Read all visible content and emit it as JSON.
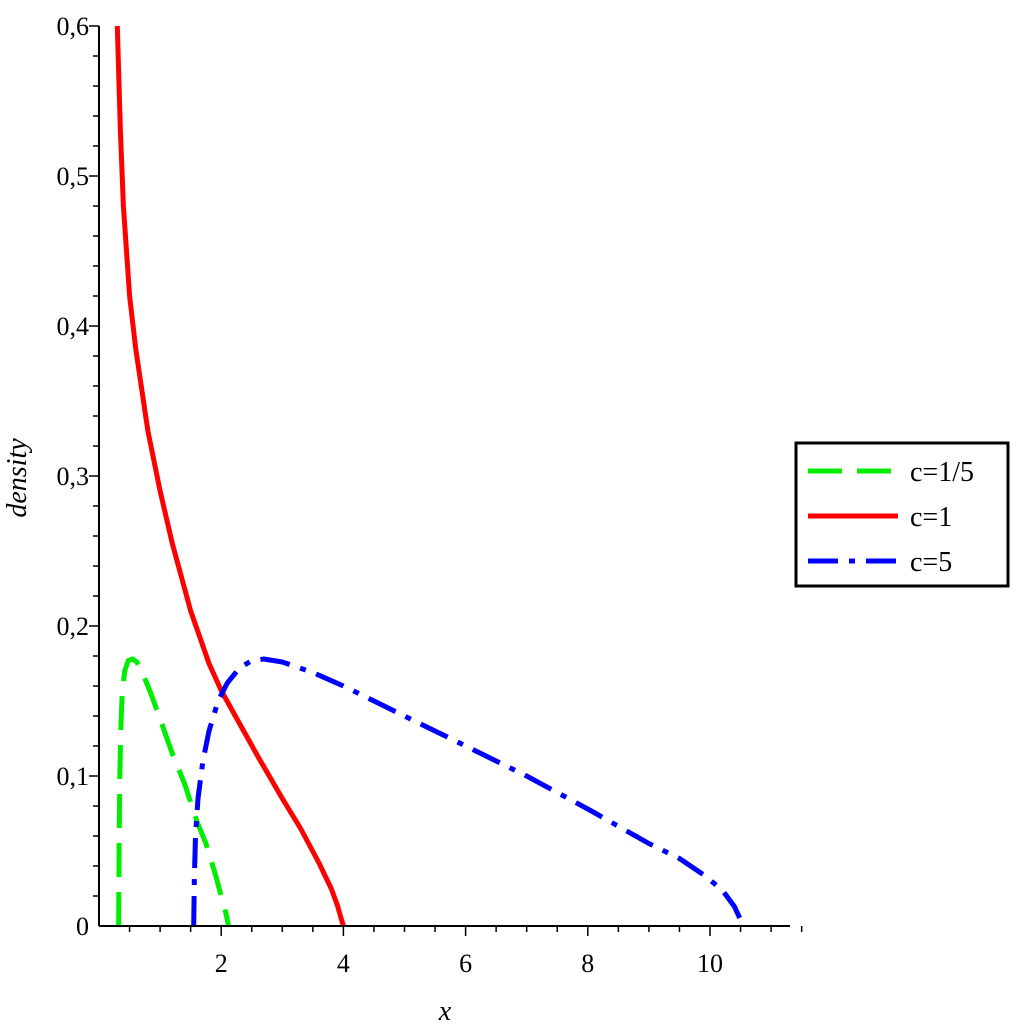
{
  "chart_data": {
    "type": "line",
    "xlabel": "x",
    "ylabel": "density",
    "xlim": [
      0,
      11.5
    ],
    "ylim": [
      0,
      0.6
    ],
    "x_ticks": [
      {
        "value": 2,
        "label": "2"
      },
      {
        "value": 4,
        "label": "4"
      },
      {
        "value": 6,
        "label": "6"
      },
      {
        "value": 8,
        "label": "8"
      },
      {
        "value": 10,
        "label": "10"
      }
    ],
    "y_ticks": [
      {
        "value": 0,
        "label": "0"
      },
      {
        "value": 0.1,
        "label": "0,1"
      },
      {
        "value": 0.2,
        "label": "0,2"
      },
      {
        "value": 0.3,
        "label": "0,3"
      },
      {
        "value": 0.4,
        "label": "0,4"
      },
      {
        "value": 0.5,
        "label": "0,5"
      },
      {
        "value": 0.6,
        "label": "0,6"
      }
    ],
    "legend_position": "right",
    "grid": false,
    "series": [
      {
        "name": "c=1/5",
        "color": "#00ee00",
        "dash": "dash",
        "x": [
          0.32,
          0.33,
          0.34,
          0.36,
          0.38,
          0.42,
          0.48,
          0.55,
          0.62,
          0.72,
          0.85,
          1.0,
          1.2,
          1.4,
          1.6,
          1.75,
          1.9,
          2.0,
          2.08,
          2.12
        ],
        "y": [
          0.0,
          0.06,
          0.1,
          0.135,
          0.155,
          0.17,
          0.177,
          0.178,
          0.176,
          0.168,
          0.155,
          0.138,
          0.115,
          0.095,
          0.07,
          0.055,
          0.035,
          0.02,
          0.008,
          0.0
        ]
      },
      {
        "name": "c=1",
        "color": "#ff0000",
        "dash": "solid",
        "x": [
          0.3,
          0.35,
          0.4,
          0.5,
          0.6,
          0.8,
          1.0,
          1.2,
          1.5,
          1.8,
          2.0,
          2.3,
          2.6,
          3.0,
          3.3,
          3.6,
          3.8,
          3.9,
          3.95,
          4.0
        ],
        "y": [
          0.6,
          0.53,
          0.48,
          0.42,
          0.385,
          0.33,
          0.29,
          0.255,
          0.21,
          0.175,
          0.157,
          0.135,
          0.113,
          0.085,
          0.065,
          0.042,
          0.025,
          0.014,
          0.007,
          0.0
        ]
      },
      {
        "name": "c=5",
        "color": "#0000ff",
        "dash": "dashdot",
        "x": [
          1.55,
          1.56,
          1.58,
          1.62,
          1.7,
          1.8,
          1.95,
          2.1,
          2.3,
          2.5,
          2.7,
          3.0,
          3.5,
          4.0,
          5.0,
          6.0,
          7.0,
          8.0,
          9.0,
          9.5,
          9.9,
          10.2,
          10.4,
          10.5
        ],
        "y": [
          0.0,
          0.03,
          0.06,
          0.085,
          0.11,
          0.13,
          0.15,
          0.162,
          0.172,
          0.177,
          0.178,
          0.176,
          0.169,
          0.16,
          0.14,
          0.12,
          0.1,
          0.078,
          0.055,
          0.045,
          0.034,
          0.024,
          0.013,
          0.004
        ]
      }
    ]
  }
}
